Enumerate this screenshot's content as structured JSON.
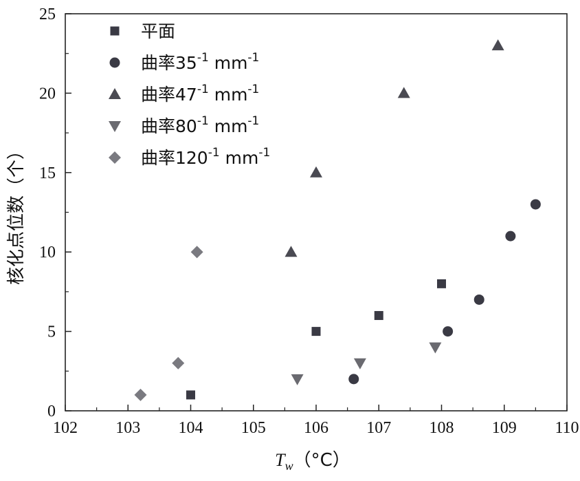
{
  "chart_data": {
    "type": "scatter",
    "xlabel": "Tw（°C）",
    "xlabel_main": "T",
    "xlabel_sub": "w",
    "xlabel_unit": "（°C）",
    "ylabel": "核化点位数（个）",
    "xlim": [
      102,
      110
    ],
    "ylim": [
      0,
      25
    ],
    "xticks": [
      102,
      103,
      104,
      105,
      106,
      107,
      108,
      109,
      110
    ],
    "yticks": [
      0,
      5,
      10,
      15,
      20,
      25
    ],
    "grid": false,
    "legend_position": "top-left",
    "series": [
      {
        "name": "平面",
        "label_main": "平面",
        "unit": "",
        "marker": "square",
        "color": "#3a3a44",
        "x": [
          104.0,
          106.0,
          107.0,
          108.0
        ],
        "y": [
          1,
          5,
          6,
          8
        ]
      },
      {
        "name": "曲率35-1 mm-1",
        "label_main": "曲率35",
        "unit": "mm",
        "marker": "circle",
        "color": "#3a3a44",
        "x": [
          106.6,
          108.1,
          108.6,
          109.1,
          109.5
        ],
        "y": [
          2,
          5,
          7,
          11,
          13
        ]
      },
      {
        "name": "曲率47-1 mm-1",
        "label_main": "曲率47",
        "unit": "mm",
        "marker": "triangle-up",
        "color": "#4a4a52",
        "x": [
          105.6,
          106.0,
          107.4,
          108.9
        ],
        "y": [
          10,
          15,
          20,
          23
        ]
      },
      {
        "name": "曲率80-1 mm-1",
        "label_main": "曲率80",
        "unit": "mm",
        "marker": "triangle-down",
        "color": "#6a6a70",
        "x": [
          105.7,
          106.7,
          107.9
        ],
        "y": [
          2,
          3,
          4
        ]
      },
      {
        "name": "曲率120-1 mm-1",
        "label_main": "曲率120",
        "unit": "mm",
        "marker": "diamond",
        "color": "#7a7a80",
        "x": [
          103.2,
          103.8,
          104.1
        ],
        "y": [
          1,
          3,
          10
        ]
      }
    ]
  },
  "superscript": "-1"
}
